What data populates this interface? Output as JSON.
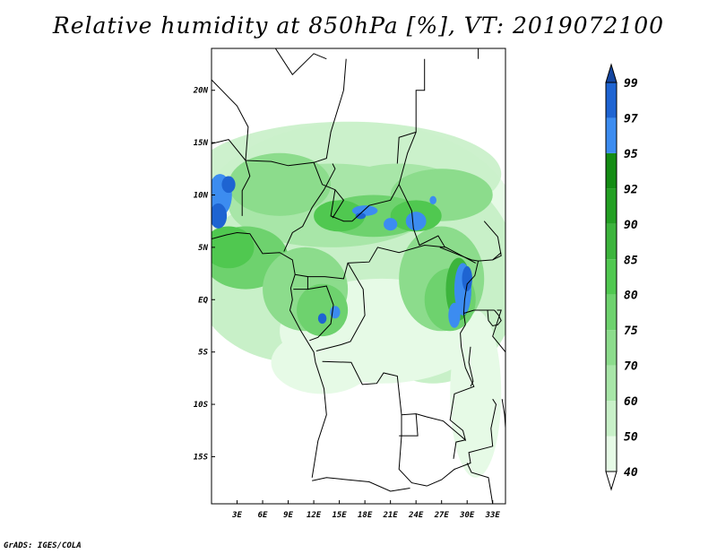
{
  "title": "Relative humidity at 850hPa [%], VT: 2019072100",
  "credit": "GrADS: IGES/COLA",
  "map": {
    "lon_range": [
      0,
      34.5
    ],
    "lat_range": [
      -19.5,
      24
    ],
    "lat_ticks": [
      {
        "value": 20,
        "label": "20N"
      },
      {
        "value": 15,
        "label": "15N"
      },
      {
        "value": 10,
        "label": "10N"
      },
      {
        "value": 5,
        "label": "5N"
      },
      {
        "value": 0,
        "label": "EQ"
      },
      {
        "value": -5,
        "label": "5S"
      },
      {
        "value": -10,
        "label": "10S"
      },
      {
        "value": -15,
        "label": "15S"
      }
    ],
    "lon_ticks": [
      {
        "value": 3,
        "label": "3E"
      },
      {
        "value": 6,
        "label": "6E"
      },
      {
        "value": 9,
        "label": "9E"
      },
      {
        "value": 12,
        "label": "12E"
      },
      {
        "value": 15,
        "label": "15E"
      },
      {
        "value": 18,
        "label": "18E"
      },
      {
        "value": 21,
        "label": "21E"
      },
      {
        "value": 24,
        "label": "24E"
      },
      {
        "value": 27,
        "label": "27E"
      },
      {
        "value": 30,
        "label": "30E"
      },
      {
        "value": 33,
        "label": "33E"
      }
    ]
  },
  "colorbar": {
    "levels": [
      "40",
      "50",
      "60",
      "70",
      "75",
      "80",
      "85",
      "90",
      "92",
      "95",
      "97",
      "99"
    ],
    "colors": [
      "#ffffff",
      "#e6fae6",
      "#c8f0c8",
      "#a8e6a8",
      "#8cdc8c",
      "#6ed26e",
      "#50c850",
      "#3cb43c",
      "#23a023",
      "#148c14",
      "#3c8cf0",
      "#1e64d2",
      "#1446a0"
    ]
  },
  "chart_data": {
    "type": "heatmap",
    "title": "Relative humidity at 850hPa [%], VT: 2019072100",
    "variable": "Relative humidity",
    "level": "850hPa",
    "units": "%",
    "valid_time": "2019072100",
    "contour_levels": [
      40,
      50,
      60,
      70,
      75,
      80,
      85,
      90,
      92,
      95,
      97,
      99
    ],
    "lon_range": [
      0,
      34.5
    ],
    "lat_range": [
      -19.5,
      24
    ]
  }
}
